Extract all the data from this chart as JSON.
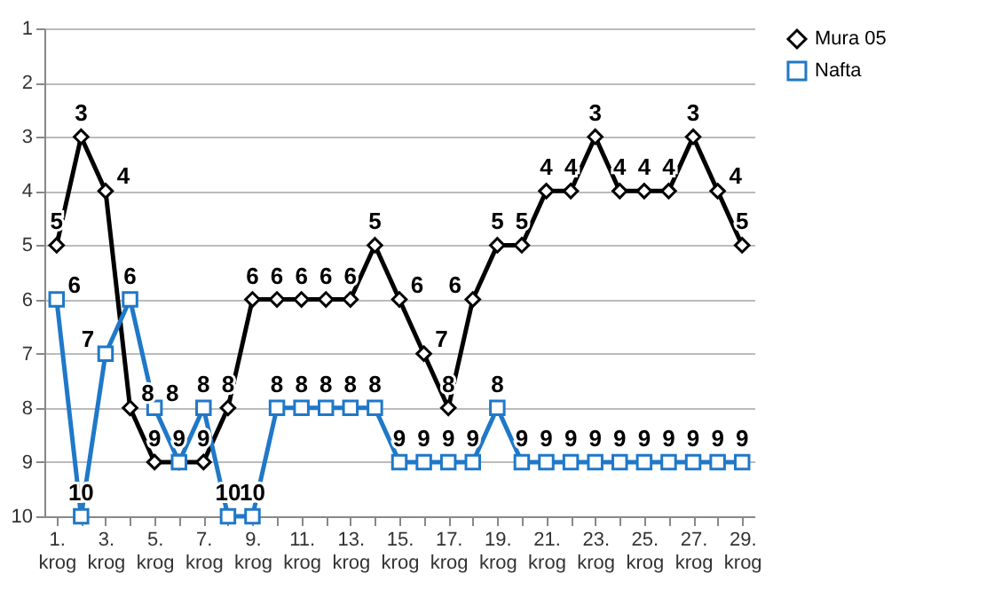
{
  "chart_data": {
    "type": "line",
    "categories": [
      "1. krog",
      null,
      "3. krog",
      null,
      "5. krog",
      null,
      "7. krog",
      null,
      "9. krog",
      null,
      "11. krog",
      null,
      "13. krog",
      null,
      "15. krog",
      null,
      "17. krog",
      null,
      "19. krog",
      null,
      "21. krog",
      null,
      "23. krog",
      null,
      "25. krog",
      null,
      "27. krog",
      null,
      "29. krog"
    ],
    "series": [
      {
        "name": "Mura 05",
        "color": "#000000",
        "marker": "diamond",
        "values": [
          5,
          3,
          4,
          8,
          9,
          9,
          9,
          8,
          6,
          6,
          6,
          6,
          6,
          5,
          6,
          7,
          8,
          6,
          5,
          5,
          4,
          4,
          3,
          4,
          4,
          4,
          3,
          4,
          5
        ]
      },
      {
        "name": "Nafta",
        "color": "#1f78c8",
        "marker": "square",
        "value_labels": [
          "6",
          "10",
          "7",
          "6",
          "8",
          null,
          "8",
          "10",
          "10",
          "8",
          "8",
          "8",
          "8",
          "8",
          "9",
          "9",
          "9",
          "9",
          "8",
          "9",
          "9",
          "9",
          "9",
          "9",
          "9",
          "9",
          "9",
          "9",
          "9"
        ],
        "values": [
          6,
          10,
          7,
          6,
          8,
          9,
          8,
          10,
          10,
          8,
          8,
          8,
          8,
          8,
          9,
          9,
          9,
          9,
          8,
          9,
          9,
          9,
          9,
          9,
          9,
          9,
          9,
          9,
          9
        ]
      }
    ],
    "ylim": [
      10,
      1
    ],
    "yticks": [
      1,
      2,
      3,
      4,
      5,
      6,
      7,
      8,
      9,
      10
    ],
    "grid": "y",
    "legend": "right",
    "data_labels": true,
    "line_style": "solid"
  }
}
